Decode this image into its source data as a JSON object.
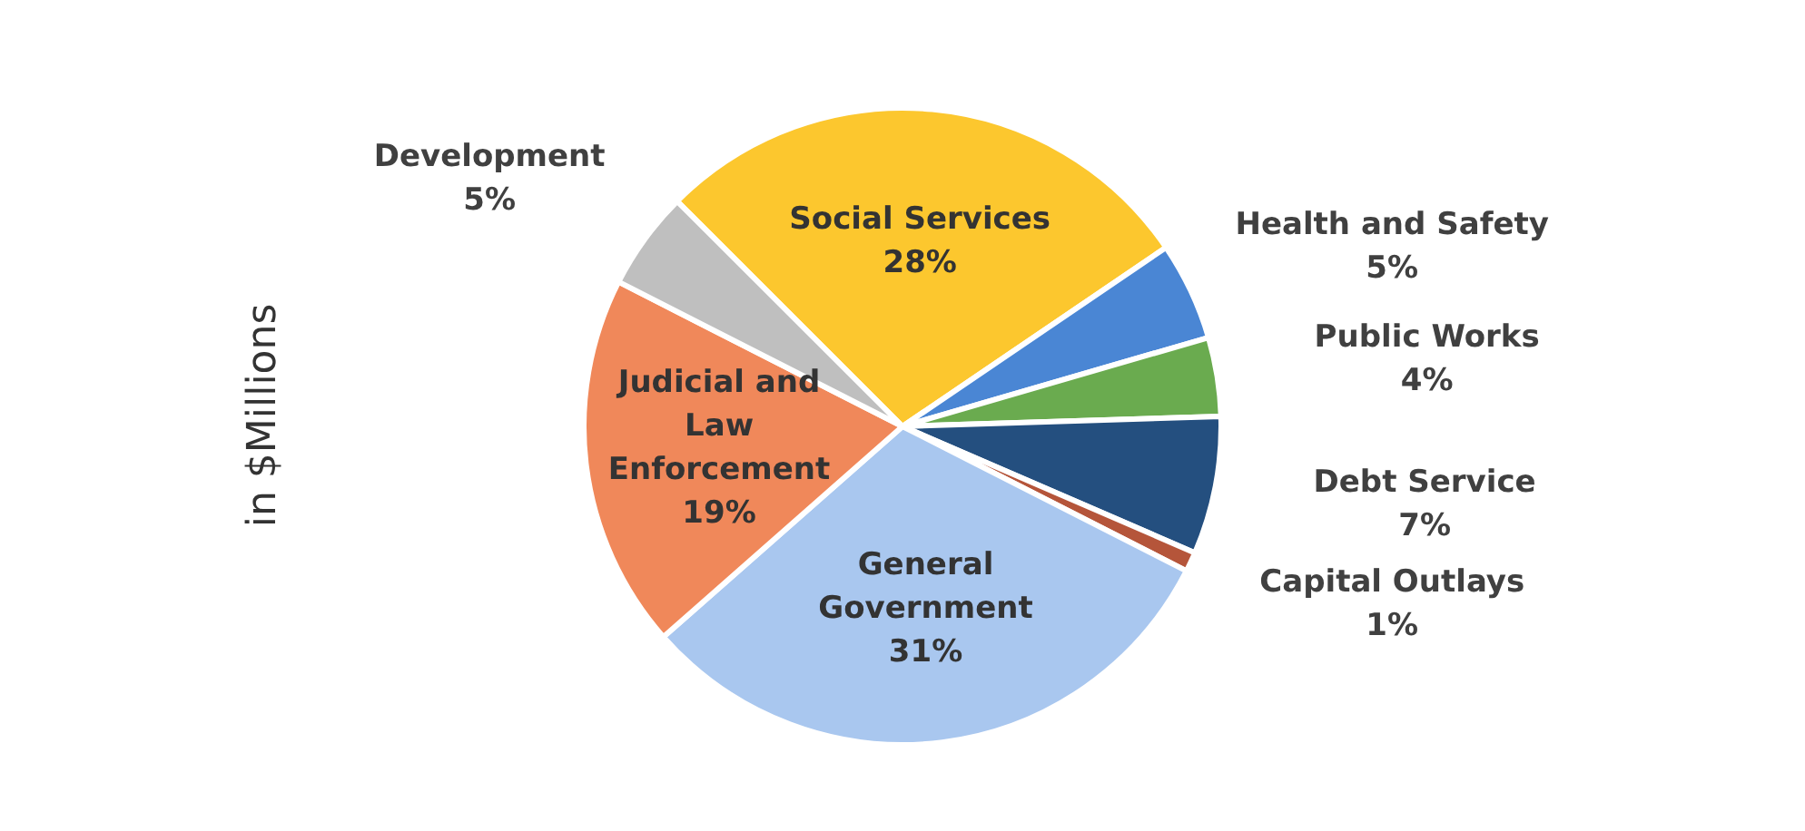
{
  "chart_data": {
    "type": "pie",
    "ylabel": "in $Millions",
    "categories": [
      "Social Services",
      "Health and Safety",
      "Public Works",
      "Debt Service",
      "Capital Outlays",
      "General Government",
      "Judicial and Law Enforcement",
      "Development"
    ],
    "values": [
      28,
      5,
      4,
      7,
      1,
      31,
      19,
      5
    ],
    "value_labels": [
      "28%",
      "5%",
      "4%",
      "7%",
      "1%",
      "31%",
      "19%",
      "5%"
    ],
    "colors": [
      "#fcc72e",
      "#4a86d4",
      "#6aab4f",
      "#244f7f",
      "#b5553a",
      "#a9c7ef",
      "#f0885a",
      "#bfbfbf"
    ]
  }
}
